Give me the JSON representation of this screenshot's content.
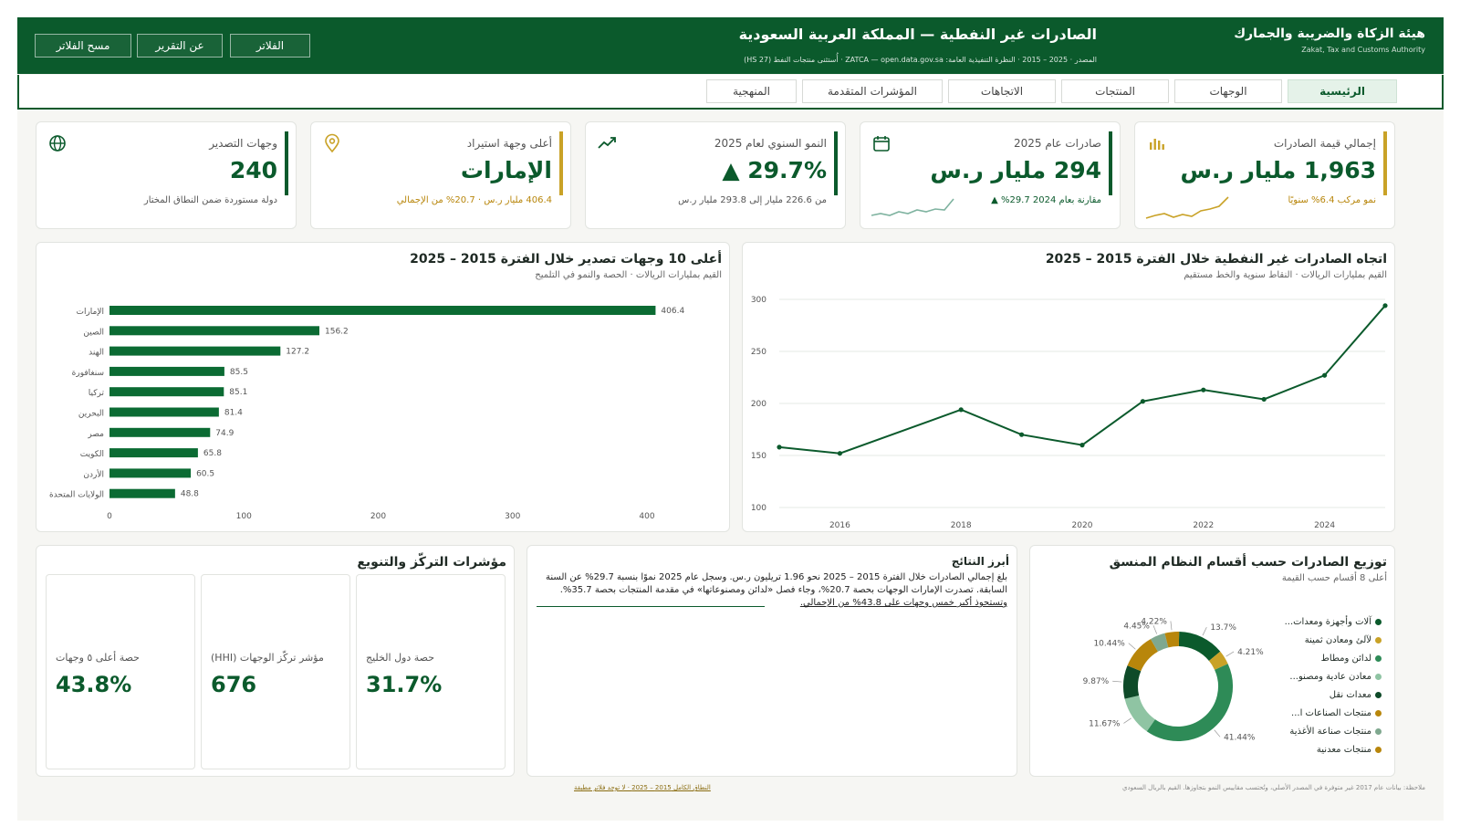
{
  "header": {
    "org_ar": "هيئة الزكاة والضريبة والجمارك",
    "org_en": "Zakat, Tax and Customs Authority",
    "title": "الصادرات غير النفطية — المملكة العربية السعودية",
    "subtitle": "المصدر · 2025 – 2015 · النظرة التنفيذية العامة: ZATCA — open.data.gov.sa · أُستثنى منتجات النفط (HS 27)",
    "buttons": [
      "الفلاتر",
      "عن التقرير",
      "مسح الفلاتر"
    ]
  },
  "tabs": [
    "الرئيسية",
    "الوجهات",
    "المنتجات",
    "الاتجاهات",
    "المؤشرات المتقدمة",
    "المنهجية"
  ],
  "kpis": [
    {
      "label": "إجمالي قيمة الصادرات",
      "value": "1,963 مليار ر.س",
      "note": "نمو مركب 6.4% سنويًا",
      "icon": "bar-chart-icon",
      "accent": "#c9a227",
      "note_color": "#b8860b"
    },
    {
      "label": "صادرات عام 2025",
      "value": "294 مليار ر.س",
      "note": "مقارنة بعام 2024 29.7% ▲",
      "icon": "calendar-icon",
      "accent": "#0b5a2c",
      "note_color": "#0b5a2c"
    },
    {
      "label": "النمو السنوي لعام 2025",
      "value": "29.7% ▲",
      "note": "من 226.6 مليار إلى 293.8 مليار ر.س",
      "icon": "trend-up-icon",
      "accent": "#0b5a2c",
      "note_color": "#555"
    },
    {
      "label": "أعلى وجهة استيراد",
      "value": "الإمارات",
      "note": "406.4 مليار ر.س · 20.7% من الإجمالي",
      "icon": "location-pin-icon",
      "accent": "#c9a227",
      "note_color": "#b8860b"
    },
    {
      "label": "وجهات التصدير",
      "value": "240",
      "note": "دولة مستوردة ضمن النطاق المختار",
      "icon": "globe-icon",
      "accent": "#0b5a2c",
      "note_color": "#555"
    }
  ],
  "colors": {
    "primary": "#0b5a2c",
    "gold": "#c9a227"
  },
  "trend_panel": {
    "title": "اتجاه الصادرات غير النفطية خلال الفترة 2015 – 2025",
    "subtitle": "القيم بمليارات الريالات · النقاط سنوية والخط مستقيم"
  },
  "bar_panel": {
    "title": "أعلى 10 وجهات تصدير خلال الفترة 2015 – 2025",
    "subtitle": "القيم بمليارات الريالات · الحصة والنمو في التلميح"
  },
  "chart_data": [
    {
      "type": "line",
      "title": "اتجاه الصادرات غير النفطية خلال الفترة 2015 – 2025",
      "x": [
        2015,
        2016,
        2018,
        2019,
        2020,
        2021,
        2022,
        2023,
        2024,
        2025
      ],
      "values": [
        158,
        152,
        194,
        170,
        160,
        202,
        213,
        204,
        227,
        294
      ],
      "ylim": [
        100,
        300
      ],
      "yticks": [
        100,
        150,
        200,
        250,
        300
      ],
      "xticks": [
        2016,
        2018,
        2020,
        2022,
        2024
      ],
      "grid": true
    },
    {
      "type": "bar",
      "orientation": "horizontal",
      "title": "أعلى 10 وجهات تصدير خلال الفترة 2015 – 2025",
      "categories": [
        "الإمارات",
        "الصين",
        "الهند",
        "سنغافورة",
        "تركيا",
        "البحرين",
        "مصر",
        "الكويت",
        "الأردن",
        "الولايات المتحدة"
      ],
      "values": [
        406.4,
        156.2,
        127.2,
        85.5,
        85.1,
        81.4,
        74.9,
        65.8,
        60.5,
        48.8
      ],
      "labels": [
        "406.4",
        "156.2",
        "127.2",
        "85.5",
        "85.1",
        "81.4",
        "74.9",
        "65.8",
        "60.5",
        "48.8"
      ],
      "xlim": [
        0,
        400
      ],
      "xticks": [
        0,
        100,
        200,
        300,
        400
      ]
    },
    {
      "type": "pie",
      "title": "توزيع الصادرات حسب أقسام النظام المنسق",
      "subtitle": "أعلى 8 أقسام حسب القيمة",
      "categories": [
        "آلات وأجهزة ومعدات...",
        "لآلئ ومعادن ثمينة",
        "لدائن ومطاط",
        "معادن عادية ومصنو...",
        "معدات نقل",
        "منتجات الصناعات ا...",
        "منتجات صناعة الأغذية",
        "منتجات معدنية"
      ],
      "values": [
        13.7,
        4.21,
        41.44,
        11.67,
        9.87,
        10.44,
        4.45,
        4.22
      ],
      "labels": [
        "13.7%",
        "4.21%",
        "41.44%",
        "11.67%",
        "9.87%",
        "10.44%",
        "4.45%",
        "4.22%"
      ],
      "colors": [
        "#0b5a2c",
        "#c9a227",
        "#2e8b57",
        "#8fc4a3",
        "#0e4a28",
        "#b8860b",
        "#7fa88f",
        "#b8860b"
      ]
    }
  ],
  "highlights": {
    "title": "أبرز النتائج",
    "lines": [
      "بلغ إجمالي الصادرات خلال الفترة 2015 – 2025 نحو 1.96 تريليون ر.س. وسجل عام 2025 نموًا بنسبة 29.7% عن السنة",
      "السابقة. تصدرت الإمارات الوجهات بحصة 20.7%، وجاء فصل «لدائن ومصنوعاتها» في مقدمة المنتجات بحصة 35.7%.",
      "وتستحوذ أكبر خمس وجهات على 43.8% من الإجمالي."
    ]
  },
  "concentration": {
    "title": "مؤشرات التركّز والتنويع",
    "metrics": [
      {
        "label": "حصة أعلى ٥ وجهات",
        "value": "43.8%"
      },
      {
        "label": "مؤشر تركّز الوجهات (HHI)",
        "value": "676"
      },
      {
        "label": "حصة دول الخليج",
        "value": "31.7%"
      }
    ]
  },
  "footer": {
    "note": "ملاحظة: بيانات عام 2017 غير متوفرة في المصدر الأصلي، وتُحتسب مقاييس النمو بتجاوزها. القيم بالريال السعودي",
    "link": "النطاق الكامل 2015 – 2025 · لا توجد فلاتر مطبقة"
  }
}
